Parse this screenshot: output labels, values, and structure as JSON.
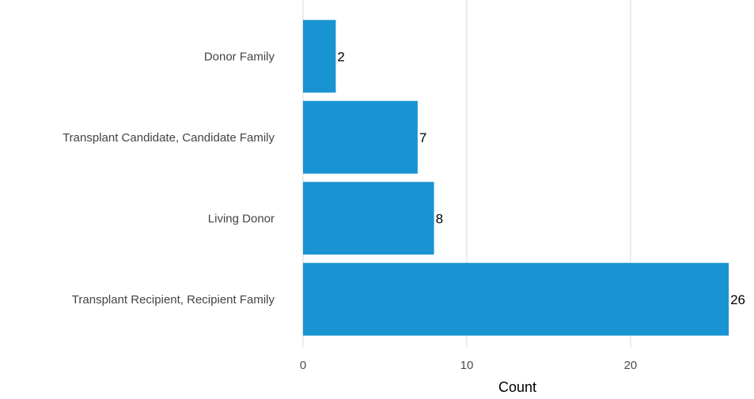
{
  "chart_data": {
    "type": "bar",
    "orientation": "horizontal",
    "categories": [
      "Donor Family",
      "Transplant Candidate, Candidate Family",
      "Living Donor",
      "Transplant Recipient, Recipient Family"
    ],
    "values": [
      2,
      7,
      8,
      26
    ],
    "data_labels": [
      "2",
      "7",
      "8",
      "26"
    ],
    "x_ticks": [
      0,
      10,
      20
    ],
    "x_tick_labels": [
      "0",
      "10",
      "20"
    ],
    "xlim": [
      0,
      27.3
    ],
    "xlabel": "Count",
    "ylabel": "",
    "title": "",
    "grid": "vertical major gridlines",
    "legend": "none",
    "bar_color": "#1a93d3",
    "grid_color": "#d9d9d9",
    "background": "#ffffff"
  }
}
